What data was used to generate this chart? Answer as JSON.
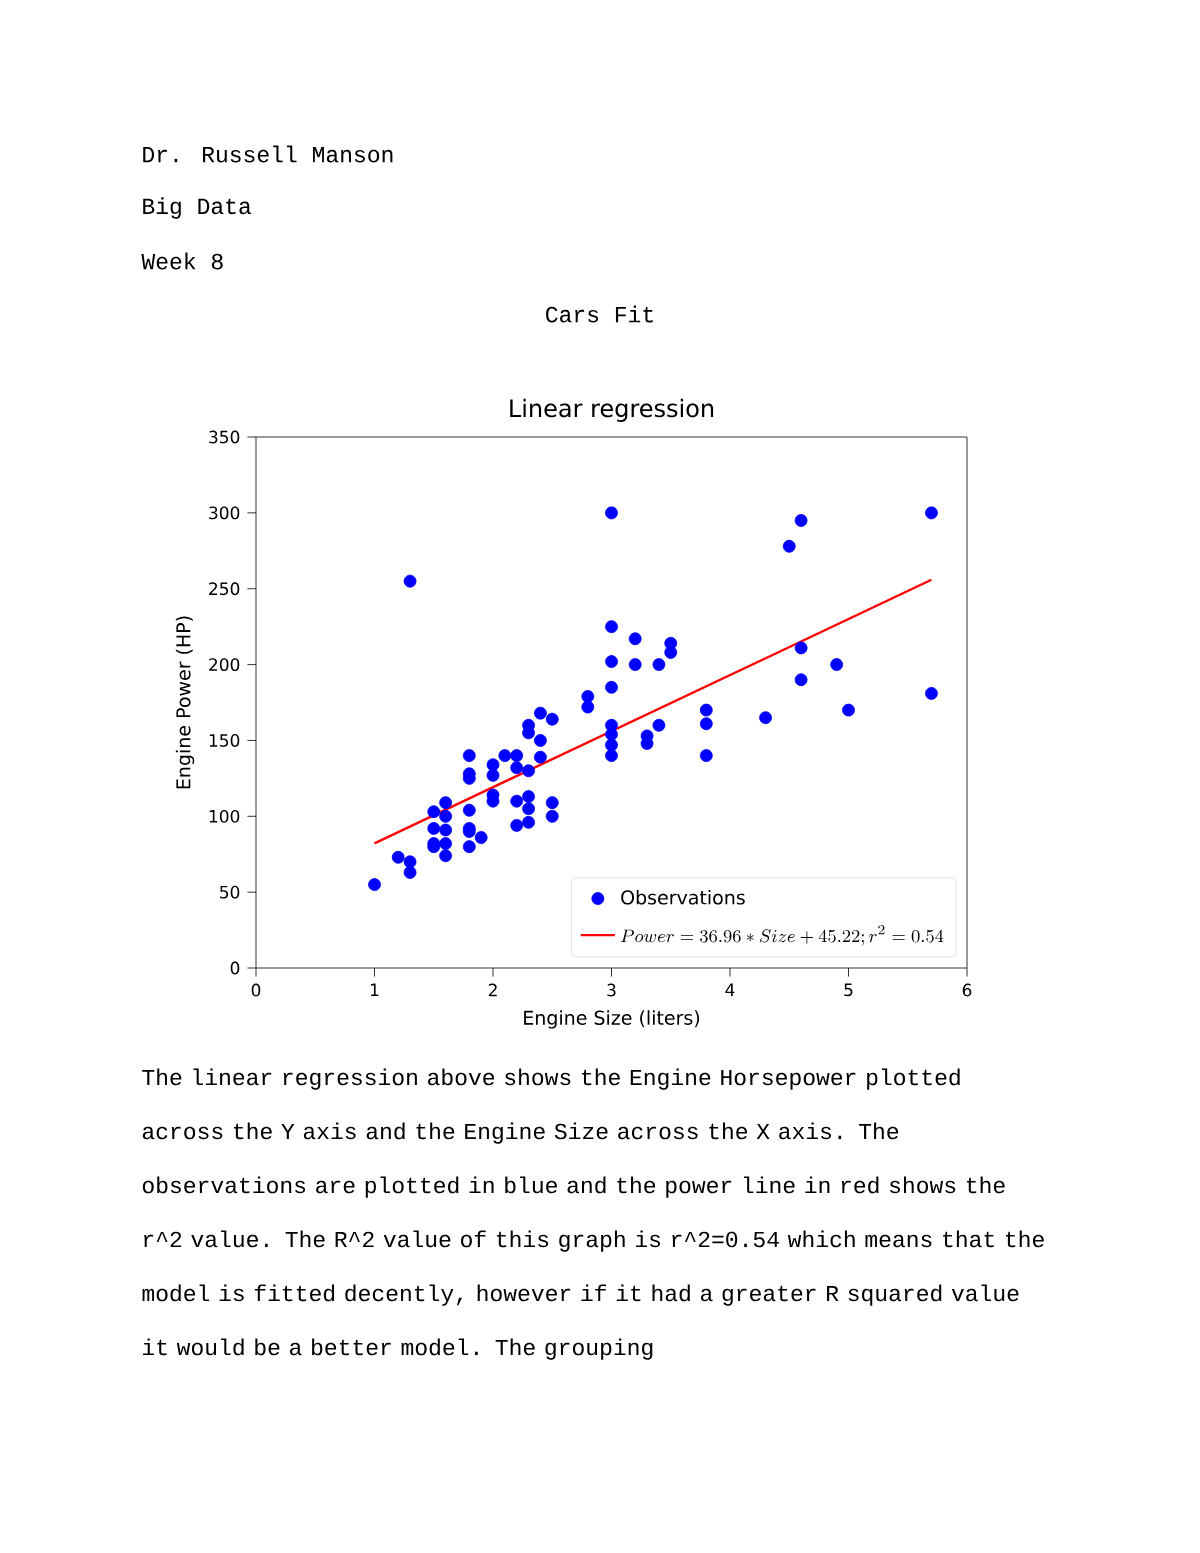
{
  "chart_data": {
    "type": "scatter",
    "title": "Linear regression",
    "xlabel": "Engine Size (liters)",
    "ylabel": "Engine Power (HP)",
    "annotations": [
      "Dr. Russell Manson",
      "Big Data",
      "Week 8",
      "Cars Fit",
      "The linear regression above shows the Engine Horsepower plotted across the Y axis and the Engine Size across the X axis. The observations are plotted in blue and the power line in red shows the r^2 value. The R^2 value of this graph is r^2=0.54 which means that the model is fitted decently, however if it had a greater R squared value it would be a better model. The grouping"
    ],
    "series": [
      {
        "name": "Observations",
        "color": "#0000ff",
        "marker": "circle",
        "x": [
          1.0,
          1.3,
          1.2,
          1.3,
          1.3,
          1.5,
          1.5,
          1.5,
          1.5,
          1.6,
          1.6,
          1.6,
          1.6,
          1.6,
          1.8,
          1.8,
          1.8,
          1.8,
          1.8,
          1.8,
          1.8,
          1.9,
          2.0,
          2.0,
          2.0,
          2.0,
          2.1,
          2.2,
          2.2,
          2.2,
          2.2,
          2.3,
          2.3,
          2.3,
          2.3,
          2.3,
          2.3,
          2.4,
          2.4,
          2.4,
          2.5,
          2.5,
          2.5,
          2.8,
          2.8,
          3.0,
          3.0,
          3.0,
          3.0,
          3.0,
          3.0,
          3.0,
          3.0,
          3.2,
          3.2,
          3.3,
          3.3,
          3.4,
          3.4,
          3.5,
          3.5,
          3.8,
          3.8,
          3.8,
          4.3,
          4.5,
          4.6,
          4.6,
          4.6,
          4.9,
          5.0,
          5.7,
          5.7
        ],
        "values": [
          55,
          255,
          73,
          70,
          63,
          103,
          92,
          82,
          80,
          109,
          100,
          91,
          82,
          74,
          140,
          128,
          125,
          104,
          92,
          90,
          80,
          86,
          134,
          127,
          114,
          110,
          140,
          140,
          132,
          110,
          94,
          160,
          155,
          130,
          113,
          105,
          96,
          168,
          150,
          139,
          164,
          109,
          100,
          179,
          172,
          300,
          225,
          202,
          185,
          160,
          154,
          147,
          140,
          217,
          200,
          153,
          148,
          200,
          160,
          214,
          208,
          170,
          161,
          140,
          165,
          278,
          295,
          211,
          190,
          200,
          170,
          300,
          181
        ]
      },
      {
        "type": "line",
        "name": "Power = 36.96 * Size + 45.22; r^2 = 0.54",
        "color": "#ff0000",
        "marker": "none",
        "line_style": "solid",
        "x": [
          1.0,
          5.7
        ],
        "values": [
          82.2,
          255.9
        ]
      }
    ],
    "xlim": [
      0,
      6
    ],
    "ylim": [
      0,
      350
    ],
    "xticks": [
      0,
      1,
      2,
      3,
      4,
      5,
      6
    ],
    "yticks": [
      0,
      50,
      100,
      150,
      200,
      250,
      300,
      350
    ],
    "legend": "bottom right",
    "grid": false
  }
}
